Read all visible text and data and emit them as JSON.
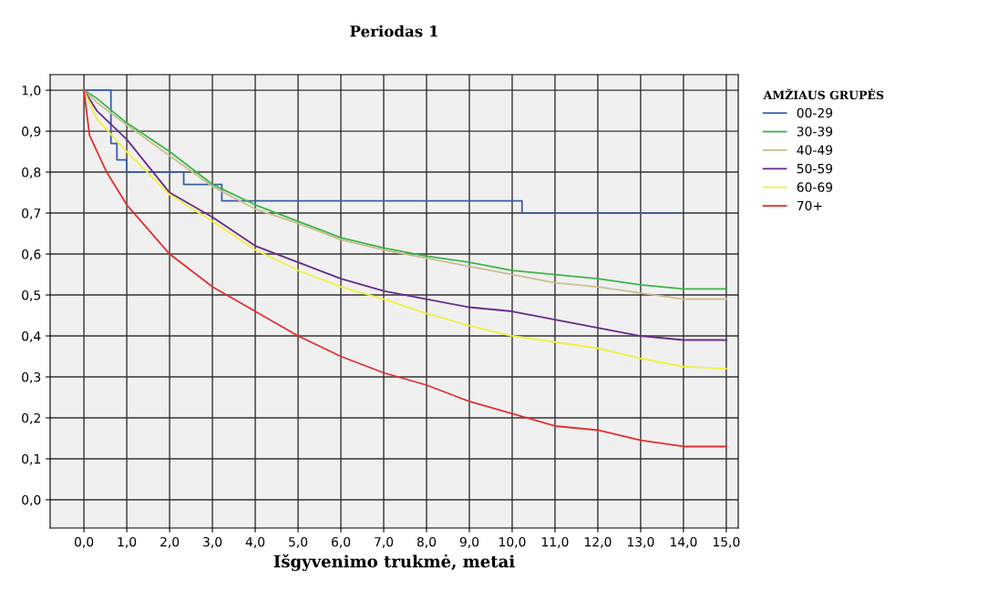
{
  "chart_data": {
    "type": "line",
    "title": "Periodas 1",
    "xlabel": "Išgyvenimo trukmė, metai",
    "legend_title": "AMŽIAUS GRUPĖS",
    "legend": "right",
    "grid": true,
    "marker": "none",
    "line_style": "solid",
    "xlim": [
      -0.79,
      15.28
    ],
    "ylim": [
      -0.069,
      1.038
    ],
    "xticks": [
      {
        "value": 0,
        "label": "0,0"
      },
      {
        "value": 1,
        "label": "1,0"
      },
      {
        "value": 2,
        "label": "2,0"
      },
      {
        "value": 3,
        "label": "3,0"
      },
      {
        "value": 4,
        "label": "4,0"
      },
      {
        "value": 5,
        "label": "5,0"
      },
      {
        "value": 6,
        "label": "6,0"
      },
      {
        "value": 7,
        "label": "7,0"
      },
      {
        "value": 8,
        "label": "8,0"
      },
      {
        "value": 9,
        "label": "9,0"
      },
      {
        "value": 10,
        "label": "10,0"
      },
      {
        "value": 11,
        "label": "11,0"
      },
      {
        "value": 12,
        "label": "12,0"
      },
      {
        "value": 13,
        "label": "13,0"
      },
      {
        "value": 14,
        "label": "14,0"
      },
      {
        "value": 15,
        "label": "15,0"
      }
    ],
    "yticks": [
      {
        "value": 0,
        "label": "0,0"
      },
      {
        "value": 0.1,
        "label": "0,1"
      },
      {
        "value": 0.2,
        "label": "0,2"
      },
      {
        "value": 0.3,
        "label": "0,3"
      },
      {
        "value": 0.4,
        "label": "0,4"
      },
      {
        "value": 0.5,
        "label": "0,5"
      },
      {
        "value": 0.6,
        "label": "0,6"
      },
      {
        "value": 0.7,
        "label": "0,7"
      },
      {
        "value": 0.8,
        "label": "0,8"
      },
      {
        "value": 0.9,
        "label": "0,9"
      },
      {
        "value": 1,
        "label": "1,0"
      }
    ],
    "series": [
      {
        "name": "00-29",
        "type": "step",
        "color": "#3a5ea8",
        "x": [
          0,
          0.63,
          0.77,
          1.0,
          2.33,
          3.22,
          10.23,
          13.9
        ],
        "values": [
          1.0,
          0.87,
          0.83,
          0.8,
          0.77,
          0.73,
          0.7,
          0.7
        ]
      },
      {
        "name": "30-39",
        "color": "#3cb44a",
        "x": [
          0,
          0.3,
          1.0,
          2.0,
          3.0,
          4.0,
          5.0,
          6.0,
          7.0,
          8.0,
          9.0,
          10.0,
          11.0,
          12.0,
          13.0,
          14.0,
          15.0
        ],
        "values": [
          1.0,
          0.98,
          0.92,
          0.85,
          0.77,
          0.72,
          0.68,
          0.64,
          0.615,
          0.595,
          0.58,
          0.56,
          0.55,
          0.54,
          0.525,
          0.515,
          0.515
        ]
      },
      {
        "name": "40-49",
        "color": "#c8bf8f",
        "x": [
          0,
          0.3,
          1.0,
          2.0,
          3.0,
          4.0,
          5.0,
          6.0,
          7.0,
          8.0,
          9.0,
          10.0,
          11.0,
          12.0,
          13.0,
          14.0,
          15.0
        ],
        "values": [
          1.0,
          0.97,
          0.915,
          0.84,
          0.765,
          0.71,
          0.675,
          0.635,
          0.61,
          0.59,
          0.57,
          0.55,
          0.53,
          0.52,
          0.505,
          0.49,
          0.49
        ]
      },
      {
        "name": "50-59",
        "color": "#6a2a8a",
        "x": [
          0,
          0.3,
          1.0,
          2.0,
          3.0,
          4.0,
          5.0,
          6.0,
          7.0,
          8.0,
          9.0,
          10.0,
          11.0,
          12.0,
          13.0,
          14.0,
          15.0
        ],
        "values": [
          1.0,
          0.95,
          0.88,
          0.75,
          0.69,
          0.62,
          0.58,
          0.54,
          0.51,
          0.49,
          0.47,
          0.46,
          0.44,
          0.42,
          0.4,
          0.39,
          0.39
        ]
      },
      {
        "name": "60-69",
        "color": "#f0f040",
        "x": [
          0,
          0.3,
          1.0,
          2.0,
          3.0,
          4.0,
          5.0,
          6.0,
          7.0,
          8.0,
          9.0,
          10.0,
          11.0,
          12.0,
          13.0,
          14.0,
          15.0
        ],
        "values": [
          1.0,
          0.93,
          0.85,
          0.745,
          0.68,
          0.61,
          0.56,
          0.52,
          0.49,
          0.455,
          0.425,
          0.4,
          0.385,
          0.37,
          0.345,
          0.325,
          0.32
        ]
      },
      {
        "name": "70+",
        "color": "#e03030",
        "x": [
          0,
          0.13,
          0.53,
          1.0,
          2.0,
          3.0,
          4.0,
          5.0,
          6.0,
          7.0,
          8.0,
          9.0,
          10.0,
          11.0,
          12.0,
          13.0,
          14.0,
          15.0
        ],
        "values": [
          1.0,
          0.89,
          0.8,
          0.72,
          0.6,
          0.52,
          0.46,
          0.4,
          0.35,
          0.31,
          0.28,
          0.24,
          0.21,
          0.18,
          0.17,
          0.145,
          0.13,
          0.13
        ]
      }
    ]
  }
}
